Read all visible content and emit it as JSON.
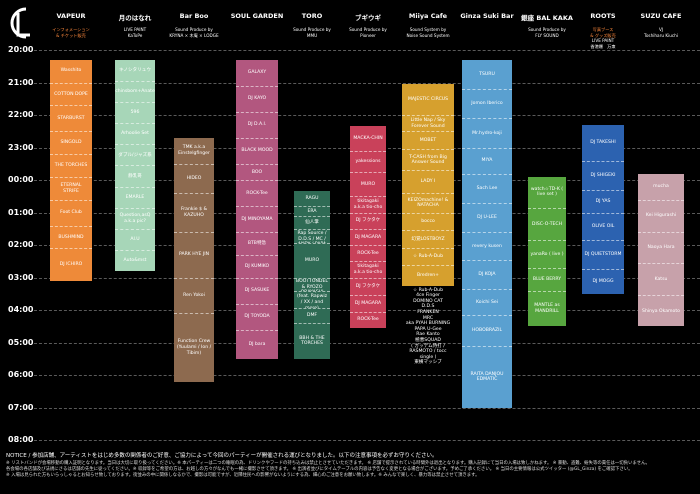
{
  "logo": {
    "text": "CL"
  },
  "timeline": {
    "labels": [
      "20:00",
      "21:00",
      "22:00",
      "23:00",
      "00:00",
      "01:00",
      "02:00",
      "03:00",
      "04:00",
      "05:00",
      "06:00",
      "07:00",
      "08:00"
    ]
  },
  "venues": [
    {
      "name": "VAPEUR",
      "subtitle": [
        "インフォメーション",
        "& チケット販売"
      ],
      "subtitle_color": "orange",
      "slot_color": "#ee8a39",
      "slots": [
        {
          "t": "Wasshito",
          "span": [
            0.3,
            1.0
          ]
        },
        {
          "t": "COTTON DOPE",
          "span": [
            1.0,
            1.7
          ]
        },
        {
          "t": "STARBURST",
          "span": [
            1.7,
            2.5
          ]
        },
        {
          "t": "SINGOLD",
          "span": [
            2.5,
            3.2
          ]
        },
        {
          "t": "THE TORCHES",
          "span": [
            3.2,
            3.9
          ]
        },
        {
          "t": "ETERNAL STRIFE",
          "span": [
            3.9,
            4.6
          ]
        },
        {
          "t": "Foot Club",
          "span": [
            4.6,
            5.4
          ]
        },
        {
          "t": "BUSHMIND",
          "span": [
            5.4,
            6.1
          ]
        },
        {
          "t": "DJ ICHIRO",
          "span": [
            6.1,
            7.1
          ]
        }
      ]
    },
    {
      "name": "月のはなれ",
      "subtitle": [
        "LIVE PAINT",
        "KaToPe"
      ],
      "subtitle_color": "white",
      "slot_color": "#a7d6b8",
      "slots": [
        {
          "t": "キノシタリュウ",
          "span": [
            0.3,
            0.95
          ]
        },
        {
          "t": "chinsbom+Anate",
          "span": [
            0.95,
            1.6
          ]
        },
        {
          "t": "596",
          "span": [
            1.6,
            2.25
          ]
        },
        {
          "t": "Arhoolie Set",
          "span": [
            2.25,
            2.9
          ]
        },
        {
          "t": "ダブル/ジャズ系",
          "span": [
            2.9,
            3.55
          ]
        },
        {
          "t": "静乳哥",
          "span": [
            3.55,
            4.2
          ]
        },
        {
          "t": "EMARLE",
          "span": [
            4.2,
            4.85
          ]
        },
        {
          "t": "Question,asQ a.k.a pic?",
          "span": [
            4.85,
            5.5
          ]
        },
        {
          "t": "AI.U",
          "span": [
            5.5,
            6.15
          ]
        },
        {
          "t": "Auto&mst",
          "span": [
            6.15,
            6.8
          ]
        }
      ]
    },
    {
      "name": "Bar Boo",
      "subtitle": [
        "Sound Produce by",
        "KRYNA × 木庵 × LODGE"
      ],
      "subtitle_color": "white",
      "slot_color": "#8d6a4f",
      "slots": [
        {
          "t": "TMK a.k.a Einstelgfinger",
          "span": [
            2.7,
            3.5
          ]
        },
        {
          "t": "HIDEO",
          "span": [
            3.5,
            4.4
          ]
        },
        {
          "t": "Frankie $ & KAZUHO",
          "span": [
            4.4,
            5.6
          ]
        },
        {
          "t": "PARK HYE JIN",
          "span": [
            5.6,
            7.0
          ]
        },
        {
          "t": "Ren Yokoi",
          "span": [
            7.0,
            8.1
          ]
        },
        {
          "t": "Function Crew (Yuulami / Ion / Tibim)",
          "span": [
            8.1,
            10.2
          ]
        }
      ]
    },
    {
      "name": "SOUL GARDEN",
      "subtitle": [
        "",
        ""
      ],
      "subtitle_color": "white",
      "slot_color": "#b2577f",
      "slots": [
        {
          "t": "GALAXY",
          "span": [
            0.3,
            1.1
          ]
        },
        {
          "t": "DJ KAYO",
          "span": [
            1.1,
            1.9
          ]
        },
        {
          "t": "DJ D.A.I.",
          "span": [
            1.9,
            2.7
          ]
        },
        {
          "t": "BLACK MOOD",
          "span": [
            2.7,
            3.5
          ]
        },
        {
          "t": "BOO",
          "span": [
            3.5,
            4.0
          ]
        },
        {
          "t": "ROCK-Tee",
          "span": [
            4.0,
            4.8
          ]
        },
        {
          "t": "DJ MINOYAMA",
          "span": [
            4.8,
            5.6
          ]
        },
        {
          "t": "BTB特急",
          "span": [
            5.6,
            6.3
          ]
        },
        {
          "t": "DJ KUMIKO",
          "span": [
            6.3,
            7.0
          ]
        },
        {
          "t": "DJ SASUKE",
          "span": [
            7.0,
            7.8
          ]
        },
        {
          "t": "DJ TOYODA",
          "span": [
            7.8,
            8.6
          ]
        },
        {
          "t": "DJ bara",
          "span": [
            8.6,
            9.5
          ]
        }
      ]
    },
    {
      "name": "TORO",
      "subtitle": [
        "Sound Produce by",
        "MMU"
      ],
      "subtitle_color": "white",
      "slot_color": "#2f6b55",
      "slots": [
        {
          "t": "RAGU",
          "span": [
            4.35,
            4.8
          ]
        },
        {
          "t": "ERA",
          "span": [
            4.8,
            5.1
          ]
        },
        {
          "t": "仙人掌",
          "span": [
            5.1,
            5.5
          ]
        },
        {
          "t": "SUMMONG BAND (Feat. Rap Source / D.D.S / MC / ANDY / PAPA U-Gee)",
          "span": [
            5.5,
            5.95
          ]
        },
        {
          "t": "MURO",
          "span": [
            5.95,
            7.0
          ]
        },
        {
          "t": "B.D. & BOOTTONDEL & RYOZO OBAYASHI",
          "span": [
            7.0,
            7.4
          ]
        },
        {
          "t": "YOTA SQUAD (feat. Rapwiz / XX / and more)",
          "span": [
            7.4,
            7.95
          ]
        },
        {
          "t": "DMF",
          "span": [
            7.95,
            8.4
          ]
        },
        {
          "t": "BBH & THE TORCHES",
          "span": [
            8.4,
            9.5
          ]
        }
      ]
    },
    {
      "name": "ブギウギ",
      "subtitle": [
        "Sound Produce by",
        "Pioneer"
      ],
      "subtitle_color": "white",
      "slot_color": "#c9415a",
      "slots": [
        {
          "t": "MACKA-CHIN",
          "span": [
            2.35,
            3.1
          ]
        },
        {
          "t": "yakessions",
          "span": [
            3.1,
            3.75
          ]
        },
        {
          "t": "MURO",
          "span": [
            3.75,
            4.5
          ]
        },
        {
          "t": "tikitagaki a.k.a tio-cho",
          "span": [
            4.5,
            5.0
          ]
        },
        {
          "t": "DJ フクタケ",
          "span": [
            5.0,
            5.5
          ]
        },
        {
          "t": "DJ MAGARA",
          "span": [
            5.5,
            6.0
          ]
        },
        {
          "t": "ROCK-Tee",
          "span": [
            6.0,
            6.5
          ]
        },
        {
          "t": "tikitagaki a.k.a tio-cho",
          "span": [
            6.5,
            7.0
          ]
        },
        {
          "t": "DJ フクタケ",
          "span": [
            7.0,
            7.55
          ]
        },
        {
          "t": "DJ MAGARA",
          "span": [
            7.55,
            8.05
          ]
        },
        {
          "t": "ROCK-Tee",
          "span": [
            8.05,
            8.55
          ]
        }
      ]
    },
    {
      "name": "Miiya Cafe",
      "subtitle": [
        "Sound System by",
        "Noise Sound System"
      ],
      "subtitle_color": "white",
      "slot_color": "#d6a02e",
      "slots": [
        {
          "t": "MAJESTIC CIRCUS",
          "span": [
            1.05,
            2.0
          ]
        },
        {
          "t": "Little Nap / Sky Forever Sound",
          "span": [
            2.0,
            2.5
          ]
        },
        {
          "t": "MOBET",
          "span": [
            2.5,
            3.05
          ]
        },
        {
          "t": "T-CASH from Big Answer Sound",
          "span": [
            3.05,
            3.7
          ]
        },
        {
          "t": "LADY I",
          "span": [
            3.7,
            4.4
          ]
        },
        {
          "t": "KEIZOmachine! & NATACHA",
          "span": [
            4.4,
            5.0
          ]
        },
        {
          "t": "bocco",
          "span": [
            5.0,
            5.55
          ]
        },
        {
          "t": "幻覚LOSTBOYZ",
          "span": [
            5.55,
            6.1
          ]
        },
        {
          "t": "☆ Rub-A-Dub",
          "span": [
            6.1,
            6.6
          ]
        },
        {
          "t": "Bredren+",
          "span": [
            6.6,
            7.25
          ]
        }
      ],
      "extras": [
        "☆ Rub-A-Dub",
        "4ce Finger",
        "DOMINO CAT",
        "D.D.S",
        "FRANKEN",
        "MRC",
        "aka PYAH BURNING",
        "PAPA U-Gee",
        "Rae Kanto",
        "極悪SQUAD",
        "( ガッデム侍打 / RASMOTO / tocc single )",
        "東横マッシブ"
      ]
    },
    {
      "name": "Ginza Suki Bar",
      "subtitle": [
        "",
        ""
      ],
      "subtitle_color": "white",
      "slot_color": "#5aa0d0",
      "slots": [
        {
          "t": "TSURU",
          "span": [
            0.3,
            1.2
          ]
        },
        {
          "t": "Jomon Iberico",
          "span": [
            1.2,
            2.1
          ]
        },
        {
          "t": "Mr.hydro-koji",
          "span": [
            2.1,
            3.0
          ]
        },
        {
          "t": "MIYA",
          "span": [
            3.0,
            3.8
          ]
        },
        {
          "t": "Sach Lee",
          "span": [
            3.8,
            4.7
          ]
        },
        {
          "t": "DJ U-LEE",
          "span": [
            4.7,
            5.6
          ]
        },
        {
          "t": "revery kusen",
          "span": [
            5.6,
            6.45
          ]
        },
        {
          "t": "DJ KOJA",
          "span": [
            6.45,
            7.35
          ]
        },
        {
          "t": "Koichi Sei",
          "span": [
            7.35,
            8.15
          ]
        },
        {
          "t": "HOBOBRAZIL",
          "span": [
            8.15,
            9.1
          ]
        },
        {
          "t": "RAITA DANJOU EDMATIC",
          "span": [
            9.1,
            11.0
          ]
        }
      ]
    },
    {
      "name": "銀座 BAL KAKA",
      "subtitle": [
        "Sound Produce by",
        "FLY SOUND"
      ],
      "subtitle_color": "white",
      "slot_color": "#57a63f",
      "slots": [
        {
          "t": "watch☆TD-K ( live set )",
          "span": [
            3.9,
            4.85
          ]
        },
        {
          "t": "DISC-O-TECH",
          "span": [
            4.85,
            5.85
          ]
        },
        {
          "t": "yanaRo ( live )",
          "span": [
            5.85,
            6.7
          ]
        },
        {
          "t": "BLUE BERRY",
          "span": [
            6.7,
            7.4
          ]
        },
        {
          "t": "MANTLE as MANDRILL",
          "span": [
            7.4,
            8.5
          ]
        }
      ]
    },
    {
      "name": "ROOTS",
      "subtitle": [
        "写真ブース",
        "& グッズ販売",
        "LIVE PAINT",
        "香港爆　万衆"
      ],
      "subtitle_color": "orange",
      "slot_color": "#2c62b0",
      "slots": [
        {
          "t": "DJ TAKESHI",
          "span": [
            2.3,
            3.4
          ]
        },
        {
          "t": "DJ SHIGEKI",
          "span": [
            3.4,
            4.3
          ]
        },
        {
          "t": "DJ YAS",
          "span": [
            4.3,
            5.0
          ]
        },
        {
          "t": "OLIVE OIL",
          "span": [
            5.0,
            5.85
          ]
        },
        {
          "t": "DJ QUIETSTORM",
          "span": [
            5.85,
            6.75
          ]
        },
        {
          "t": "DJ MOGG",
          "span": [
            6.75,
            7.5
          ]
        }
      ]
    },
    {
      "name": "SUZU CAFE",
      "subtitle": [
        "VJ",
        "Toshiharu Kiuchi"
      ],
      "subtitle_color": "white",
      "slot_color": "#c7a1aa",
      "slots": [
        {
          "t": "mucha",
          "span": [
            3.8,
            4.6
          ]
        },
        {
          "t": "Kei Higurashi",
          "span": [
            4.6,
            5.6
          ]
        },
        {
          "t": "Naoya Hara",
          "span": [
            5.6,
            6.55
          ]
        },
        {
          "t": "Katsu",
          "span": [
            6.55,
            7.55
          ]
        },
        {
          "t": "Shinya Okamoto",
          "span": [
            7.55,
            8.5
          ]
        }
      ]
    }
  ],
  "footer": {
    "notice": "NOTICE / 参加店舗、アーティストをはじめ多数の関係者のご好意、ご協力によって今回のパーティーが開催される運びとなりました。以下の注意事項を必ずお守りください。",
    "note1": "※ リストバンドが会場移動の購入証明となります。当日は大切に取り扱ってください。※ 本パーティーは二つの睡眠の為、ドリンクやフードの持ち込みは禁止とさせていただきます。 ※ 店舗で提示されている時間外は退出となります。購入記録にて当日の入場は致しかねます。 ※ 暴動、盗難、紛失等の責任は一切負いません。",
    "note2": "各会場の各店舗及び法規にさるは店舗の先生に従ってください。※ 収録等をご希望の方は、お越しの方々がなんでも一緒に撮影させて頂きます。 ※ 出演者並びにタイムテーブルの内容は予告なく変更となる場合がございます。予めご了承ください。 ※ 当日の主要情報は公式ツイッター (@GL_Ginza) をご確認下さい。",
    "note3": "※ 入場は見られた方もいらっしゃるとお知らせ致しております。街並みの中に関係しなるかで、撮影は可能ですが、近隣住民への影響がないようにする為、細心のご注意をお願い致します。※ みんなで楽しく、暴力等は禁止させて頂きます。"
  }
}
